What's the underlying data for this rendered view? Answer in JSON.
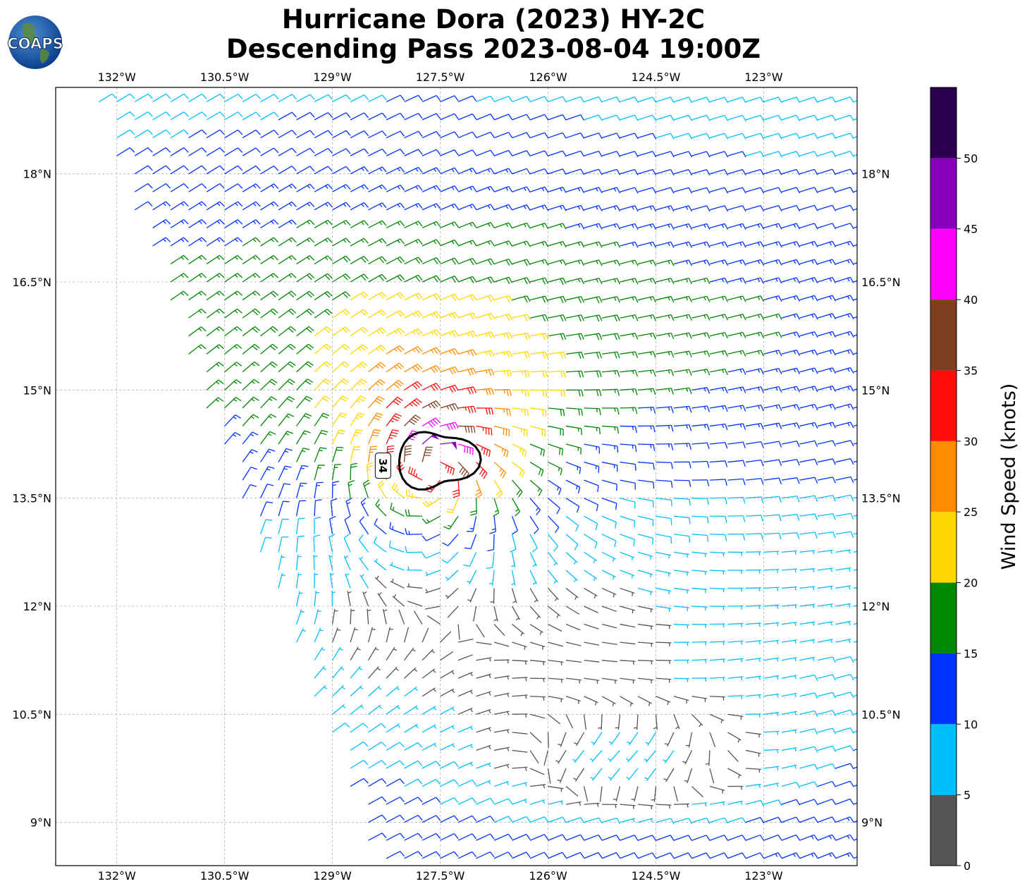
{
  "title": {
    "line1": "Hurricane Dora (2023) HY-2C",
    "line2": "Descending Pass 2023-08-04 19:00Z"
  },
  "logo": {
    "text": "COAPS",
    "icon": "globe-logo-icon"
  },
  "map": {
    "lon_range": [
      -132.85,
      -121.7
    ],
    "lat_range": [
      8.4,
      19.2
    ],
    "lon_ticks": [
      -132,
      -130.5,
      -129,
      -127.5,
      -126,
      -124.5,
      -123
    ],
    "lon_tick_labels": [
      "132°W",
      "130.5°W",
      "129°W",
      "127.5°W",
      "126°W",
      "124.5°W",
      "123°W"
    ],
    "lat_ticks": [
      18,
      16.5,
      15,
      13.5,
      12,
      10.5,
      9
    ],
    "lat_tick_labels": [
      "18°N",
      "16.5°N",
      "15°N",
      "13.5°N",
      "12°N",
      "10.5°N",
      "9°N"
    ],
    "grid": true,
    "gridline_color": "#b0b0b0"
  },
  "storm": {
    "center": {
      "lon": -127.6,
      "lat": 13.95
    },
    "contour_label": "34",
    "contour_color": "#000000"
  },
  "colorbar": {
    "label": "Wind Speed (knots)",
    "boundaries": [
      0,
      5,
      10,
      15,
      20,
      25,
      30,
      35,
      40,
      45,
      50,
      55
    ],
    "tick_values": [
      0,
      5,
      10,
      15,
      20,
      25,
      30,
      35,
      40,
      45,
      50
    ],
    "tick_labels": [
      "0",
      "5",
      "10",
      "15",
      "20",
      "25",
      "30",
      "35",
      "40",
      "45",
      "50"
    ],
    "colors": [
      "#555555",
      "#00bfff",
      "#0033ff",
      "#008800",
      "#ffd700",
      "#ff8c00",
      "#ff0d0d",
      "#7f3f22",
      "#ff00ff",
      "#8800bb",
      "#2a004f"
    ]
  },
  "chart_data": {
    "type": "scatter",
    "description_values": "Wind barbs, knots, at (lon, lat)",
    "swath_west_edge_lon": [
      -132.4,
      -128.4
    ],
    "swath_west_edge_lat": [
      19.2,
      8.4
    ]
  }
}
